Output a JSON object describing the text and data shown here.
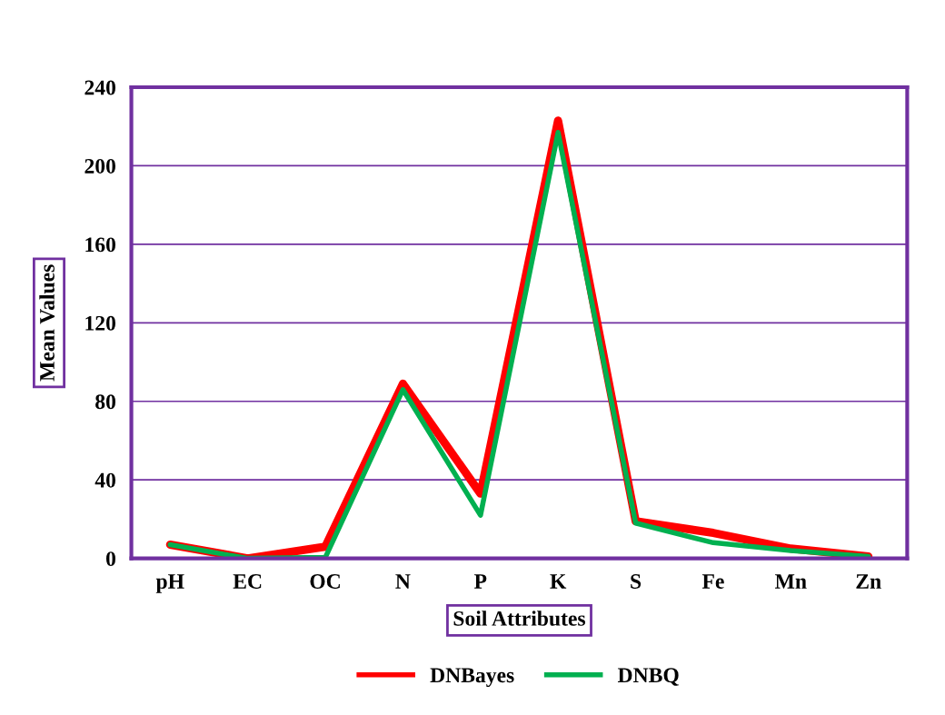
{
  "chart_data": {
    "type": "line",
    "xlabel": "Soil Attributes",
    "ylabel": "Mean Values",
    "categories": [
      "pH",
      "EC",
      "OC",
      "N",
      "P",
      "K",
      "S",
      "Fe",
      "Mn",
      "Zn"
    ],
    "series": [
      {
        "name": "DNBayes",
        "color": "#ff0000",
        "values": [
          7,
          0,
          6,
          89,
          33,
          223,
          19,
          13,
          5,
          1
        ]
      },
      {
        "name": "DNBQ",
        "color": "#00b050",
        "values": [
          7,
          0,
          0.5,
          86,
          22,
          217,
          18,
          8,
          4,
          1
        ]
      }
    ],
    "ylim": [
      0,
      240
    ],
    "yticks": [
      0,
      40,
      80,
      120,
      160,
      200,
      240
    ],
    "grid": "y",
    "legend": "bottom",
    "marker": "none",
    "line_style": "solid"
  }
}
